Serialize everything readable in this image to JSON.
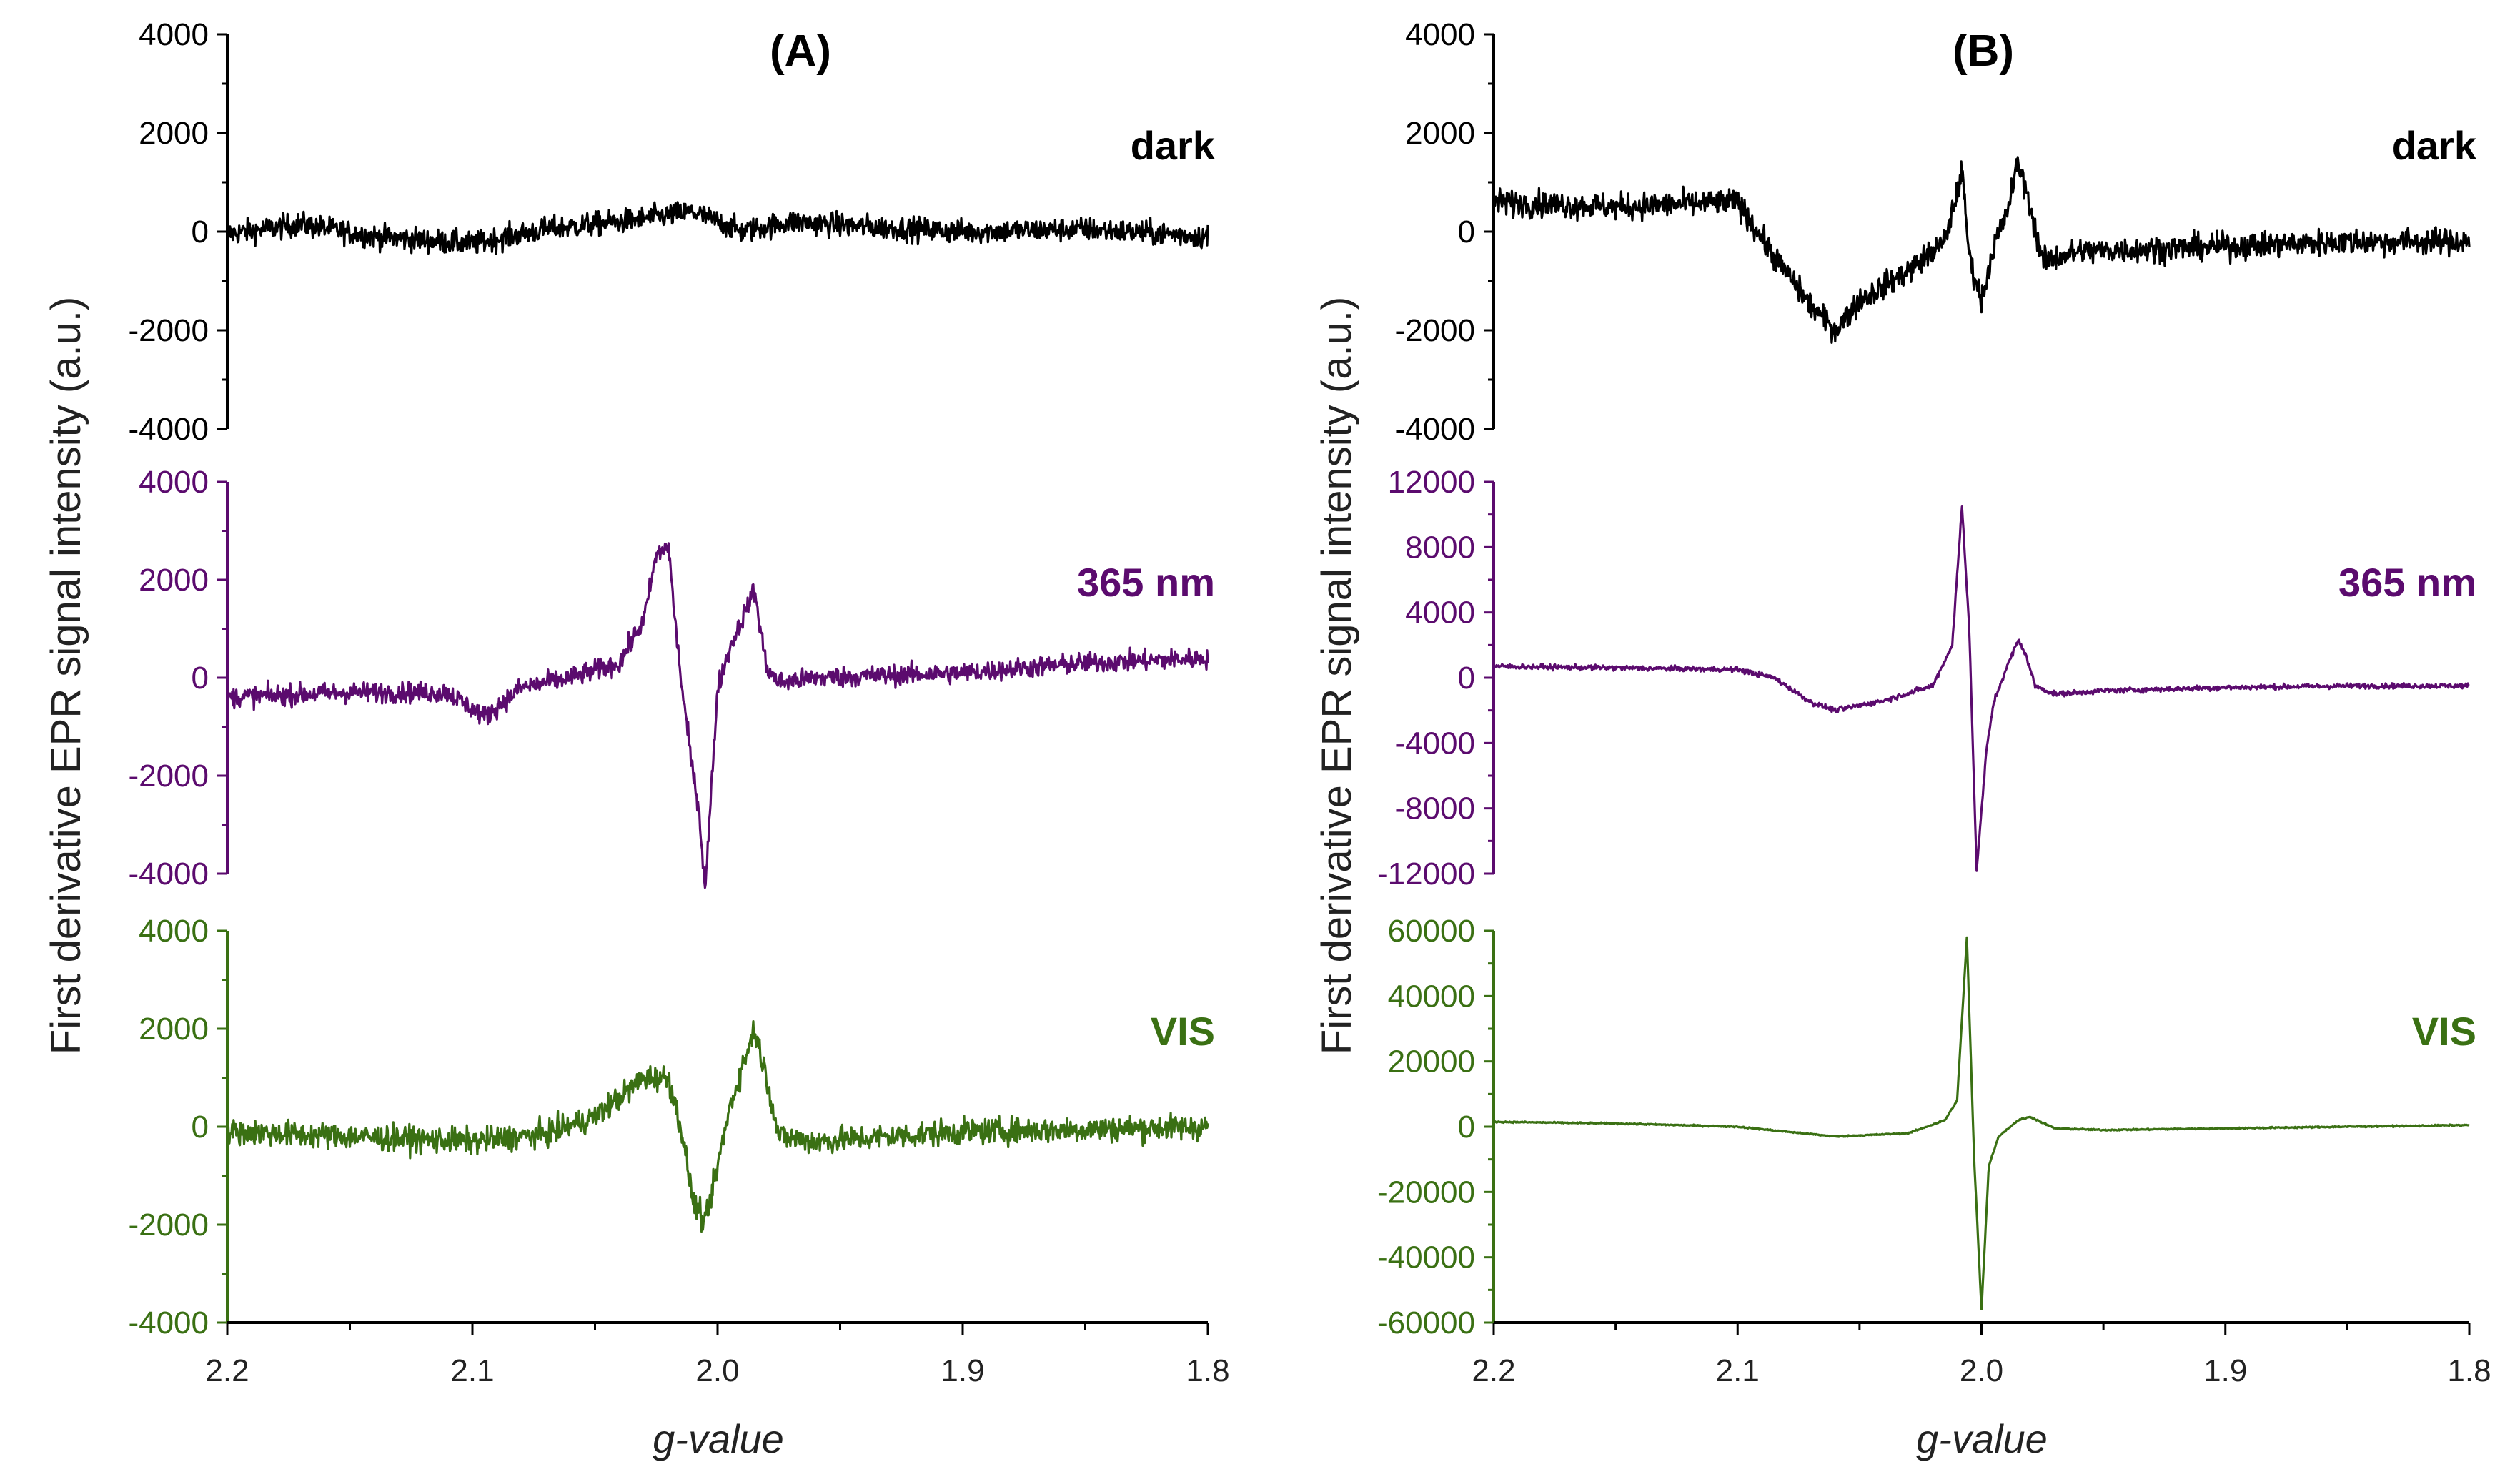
{
  "figure": {
    "ylabel": "First derivative EPR signal intensity (a.u.)",
    "xlabel": "g-value",
    "colors": {
      "dark": "#000000",
      "uv": "#5b0b6e",
      "vis": "#3a7013"
    }
  },
  "chart_data": [
    {
      "type": "line",
      "panel": "(A)",
      "title": "(A)",
      "xlabel": "g-value",
      "ylabel": "First derivative EPR signal intensity (a.u.)",
      "x_reversed": true,
      "xlim": [
        2.2,
        1.8
      ],
      "xticks": [
        "2.2",
        "2.1",
        "2.0",
        "1.9",
        "1.8"
      ],
      "subplots": [
        {
          "name": "dark",
          "label": "dark",
          "color": "#000000",
          "ylim": [
            -4000,
            4000
          ],
          "yticks": [
            4000,
            2000,
            0,
            -2000,
            -4000
          ],
          "noise": 230,
          "x": [
            2.2,
            2.17,
            2.14,
            2.1,
            2.07,
            2.04,
            2.01,
            1.99,
            1.97,
            1.94,
            1.9,
            1.85,
            1.8
          ],
          "y": [
            -50,
            150,
            -100,
            -250,
            50,
            200,
            400,
            0,
            200,
            100,
            0,
            50,
            -100
          ]
        },
        {
          "name": "365 nm",
          "label": "365 nm",
          "color": "#5b0b6e",
          "ylim": [
            -4000,
            4000
          ],
          "yticks": [
            4000,
            2000,
            0,
            -2000,
            -4000
          ],
          "noise": 200,
          "x": [
            2.2,
            2.15,
            2.11,
            2.095,
            2.08,
            2.06,
            2.04,
            2.03,
            2.025,
            2.02,
            2.018,
            2.015,
            2.01,
            2.008,
            2.005,
            2.0,
            1.995,
            1.99,
            1.985,
            1.98,
            1.975,
            1.96,
            1.9,
            1.85,
            1.8
          ],
          "y": [
            -400,
            -300,
            -300,
            -800,
            -200,
            0,
            300,
            1200,
            2500,
            2700,
            1500,
            0,
            -2000,
            -2500,
            -4300,
            -200,
            600,
            1200,
            1800,
            200,
            -100,
            0,
            100,
            300,
            400
          ]
        },
        {
          "name": "VIS",
          "label": "VIS",
          "color": "#3a7013",
          "ylim": [
            -4000,
            4000
          ],
          "yticks": [
            4000,
            2000,
            0,
            -2000,
            -4000
          ],
          "noise": 250,
          "x": [
            2.2,
            2.15,
            2.1,
            2.07,
            2.05,
            2.04,
            2.03,
            2.02,
            2.015,
            2.01,
            2.005,
            2.0,
            1.995,
            1.99,
            1.985,
            1.98,
            1.975,
            1.96,
            1.9,
            1.85,
            1.8
          ],
          "y": [
            -100,
            -200,
            -300,
            -150,
            200,
            600,
            1000,
            1000,
            0,
            -1500,
            -2000,
            -800,
            400,
            1200,
            2000,
            1000,
            -200,
            -300,
            -100,
            -50,
            0
          ]
        }
      ],
      "annotations": [
        "dark",
        "365 nm",
        "VIS"
      ]
    },
    {
      "type": "line",
      "panel": "(B)",
      "title": "(B)",
      "xlabel": "g-value",
      "ylabel": "First derivative EPR signal intensity (a.u.)",
      "x_reversed": true,
      "xlim": [
        2.2,
        1.8
      ],
      "xticks": [
        "2.2",
        "2.1",
        "2.0",
        "1.9",
        "1.8"
      ],
      "subplots": [
        {
          "name": "dark",
          "label": "dark",
          "color": "#000000",
          "ylim": [
            -4000,
            4000
          ],
          "yticks": [
            4000,
            2000,
            0,
            -2000,
            -4000
          ],
          "noise": 250,
          "x": [
            2.2,
            2.15,
            2.1,
            2.085,
            2.07,
            2.06,
            2.05,
            2.03,
            2.015,
            2.008,
            2.005,
            2.0,
            1.995,
            1.99,
            1.985,
            1.98,
            1.975,
            1.96,
            1.9,
            1.85,
            1.8
          ],
          "y": [
            600,
            500,
            600,
            -500,
            -1500,
            -2000,
            -1400,
            -800,
            -200,
            1200,
            -500,
            -1400,
            -300,
            300,
            1400,
            500,
            -600,
            -400,
            -300,
            -200,
            -200
          ]
        },
        {
          "name": "365 nm",
          "label": "365 nm",
          "color": "#5b0b6e",
          "ylim": [
            -12000,
            12000
          ],
          "yticks": [
            12000,
            8000,
            4000,
            0,
            -4000,
            -8000,
            -12000
          ],
          "noise": 150,
          "x": [
            2.2,
            2.1,
            2.085,
            2.07,
            2.06,
            2.04,
            2.02,
            2.012,
            2.008,
            2.005,
            2.002,
            1.998,
            1.995,
            1.99,
            1.985,
            1.982,
            1.978,
            1.97,
            1.95,
            1.9,
            1.85,
            1.8
          ],
          "y": [
            700,
            500,
            0,
            -1500,
            -2000,
            -1400,
            -500,
            2000,
            10500,
            3000,
            -11800,
            -4500,
            -1500,
            500,
            2300,
            1500,
            -500,
            -1000,
            -800,
            -600,
            -500,
            -500
          ]
        },
        {
          "name": "VIS",
          "label": "VIS",
          "color": "#3a7013",
          "ylim": [
            -60000,
            60000
          ],
          "yticks": [
            60000,
            40000,
            20000,
            0,
            -20000,
            -40000,
            -60000
          ],
          "noise": 200,
          "x": [
            2.2,
            2.15,
            2.1,
            2.06,
            2.03,
            2.015,
            2.01,
            2.006,
            2.003,
            2.0,
            1.997,
            1.993,
            1.985,
            1.98,
            1.97,
            1.95,
            1.9,
            1.85,
            1.8
          ],
          "y": [
            1500,
            1000,
            0,
            -3000,
            -2000,
            2000,
            8000,
            58000,
            -10000,
            -56000,
            -12000,
            -3000,
            2000,
            3000,
            -500,
            -1000,
            -500,
            0,
            500
          ]
        }
      ],
      "annotations": [
        "dark",
        "365 nm",
        "VIS"
      ]
    }
  ]
}
